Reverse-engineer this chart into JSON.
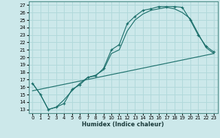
{
  "xlabel": "Humidex (Indice chaleur)",
  "xlim": [
    -0.5,
    23.5
  ],
  "ylim": [
    12.5,
    27.5
  ],
  "xticks": [
    0,
    1,
    2,
    3,
    4,
    5,
    6,
    7,
    8,
    9,
    10,
    11,
    12,
    13,
    14,
    15,
    16,
    17,
    18,
    19,
    20,
    21,
    22,
    23
  ],
  "yticks": [
    13,
    14,
    15,
    16,
    17,
    18,
    19,
    20,
    21,
    22,
    23,
    24,
    25,
    26,
    27
  ],
  "bg_color": "#cce8ea",
  "line_color": "#1a6e6a",
  "grid_color": "#b0d8da",
  "line1_x": [
    0,
    1,
    2,
    3,
    4,
    5,
    6,
    7,
    8,
    9,
    10,
    11,
    12,
    13,
    14,
    15,
    16,
    17,
    18,
    19,
    20,
    21,
    22,
    23
  ],
  "line1_y": [
    16.5,
    15.0,
    13.0,
    13.3,
    13.8,
    15.7,
    16.3,
    17.3,
    17.5,
    18.5,
    21.0,
    21.7,
    24.5,
    25.5,
    26.3,
    26.5,
    26.8,
    26.8,
    26.8,
    26.7,
    25.0,
    23.0,
    21.5,
    20.7
  ],
  "line2_x": [
    0,
    1,
    2,
    3,
    4,
    5,
    6,
    7,
    8,
    9,
    10,
    11,
    12,
    13,
    14,
    15,
    16,
    17,
    18,
    19,
    20,
    21,
    22,
    23
  ],
  "line2_y": [
    16.5,
    15.0,
    13.0,
    13.3,
    14.3,
    15.5,
    16.5,
    17.3,
    17.6,
    18.3,
    20.5,
    21.0,
    23.5,
    25.0,
    25.8,
    26.3,
    26.5,
    26.7,
    26.5,
    26.0,
    25.2,
    23.2,
    21.3,
    20.5
  ],
  "line3_x": [
    0,
    23
  ],
  "line3_y": [
    15.5,
    20.5
  ]
}
